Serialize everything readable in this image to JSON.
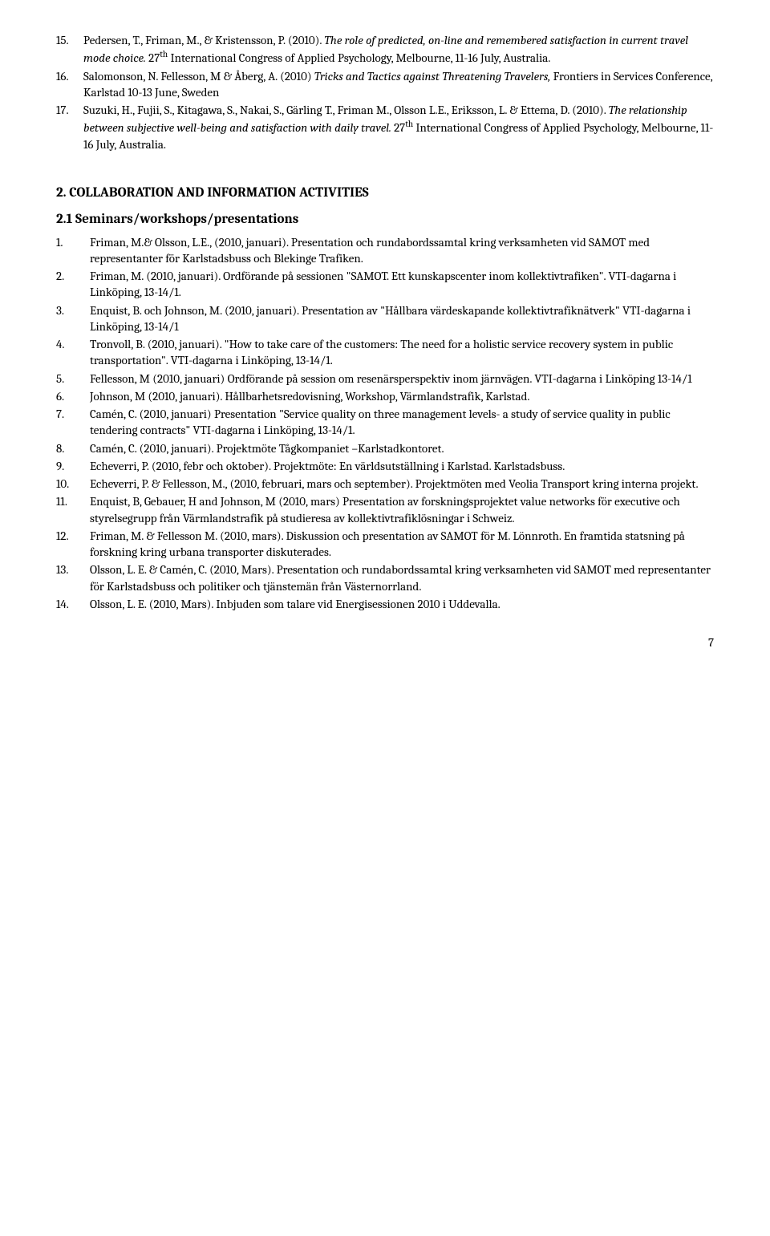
{
  "top_list": [
    {
      "num": "15.",
      "text": "Pedersen, T., Friman, M., & Kristensson, P. (2010). <span class=\"italic\">The role of predicted, on-line and remembered satisfaction in current travel mode choice.</span> 27<sup>th</sup> International Congress of Applied Psychology, Melbourne, 11-16 July, Australia."
    },
    {
      "num": "16.",
      "text": "Salomonson, N. Fellesson, M & Åberg, A. (2010) <span class=\"italic\">Tricks and Tactics against Threatening Travelers,</span> Frontiers in Services Conference, Karlstad 10-13 June, Sweden"
    },
    {
      "num": "17.",
      "text": "Suzuki, H., Fujii, S., Kitagawa, S., Nakai, S., Gärling T., Friman M., Olsson L.E., Eriksson, L. & Ettema, D. (2010). <span class=\"italic\">The relationship between subjective well-being and satisfaction with daily travel.</span> 27<sup>th</sup> International Congress of Applied Psychology, Melbourne, 11-16 July, Australia."
    }
  ],
  "section_heading": "2. COLLABORATION AND INFORMATION ACTIVITIES",
  "subsection_heading": "2.1 Seminars/workshops/presentations",
  "num_list": [
    {
      "num": "1.",
      "text": "Friman, M.& Olsson, L.E., (2010, januari). Presentation och rundabordssamtal kring verksamheten vid SAMOT med representanter för Karlstadsbuss och Blekinge Trafiken."
    },
    {
      "num": "2.",
      "text": "Friman, M. (2010, januari). Ordförande på sessionen \"SAMOT. Ett kunskapscenter inom kollektivtrafiken\". VTI-dagarna i Linköping, 13-14/1."
    },
    {
      "num": "3.",
      "text": "Enquist, B. och Johnson, M. (2010, januari). Presentation av \"Hållbara värdeskapande kollektivtrafiknätverk\" VTI-dagarna i Linköping, 13-14/1"
    },
    {
      "num": "4.",
      "text": "Tronvoll, B. (2010, januari). \"How to take care of the customers: The need for a holistic service recovery system in public transportation\". VTI-dagarna i Linköping, 13-14/1."
    },
    {
      "num": "5.",
      "text": "Fellesson, M (2010, januari) Ordförande på session om resenärsperspektiv inom järnvägen. VTI-dagarna i Linköping 13-14/1"
    },
    {
      "num": "6.",
      "text": "Johnson, M (2010, januari). Hållbarhetsredovisning, Workshop, Värmlandstrafik, Karlstad."
    },
    {
      "num": "7.",
      "text": "Camén, C. (2010, januari) Presentation \"Service quality on three management levels- a study of service quality in public tendering contracts\" VTI-dagarna i Linköping, 13-14/1."
    },
    {
      "num": "8.",
      "text": "Camén, C. (2010, januari). Projektmöte Tågkompaniet –Karlstadkontoret."
    },
    {
      "num": "9.",
      "text": "Echeverri, P. (2010, febr och oktober). Projektmöte: En världsutställning i Karlstad. Karlstadsbuss."
    },
    {
      "num": "10.",
      "text": "Echeverri, P. & Fellesson, M., (2010, februari, mars och september). Projektmöten med Veolia Transport kring interna projekt."
    },
    {
      "num": "11.",
      "text": "Enquist, B, Gebauer, H and Johnson, M (2010, mars) Presentation av forskningsprojektet value networks för executive och styrelsegrupp från Värmlandstrafik på studieresa av kollektivtrafiklösningar i Schweiz."
    },
    {
      "num": "12.",
      "text": "Friman, M. & Fellesson M. (2010, mars). Diskussion och presentation av SAMOT för M. Lönnroth. En framtida statsning på forskning kring urbana transporter diskuterades."
    },
    {
      "num": "13.",
      "text": "Olsson, L. E. & Camén, C. (2010, Mars). Presentation och rundabordssamtal kring verksamheten vid SAMOT med representanter för Karlstadsbuss och politiker och tjänstemän från Västernorrland."
    },
    {
      "num": "14.",
      "text": "Olsson, L. E. (2010, Mars). Inbjuden som talare vid Energisessionen 2010 i Uddevalla."
    }
  ],
  "page_number": "7"
}
